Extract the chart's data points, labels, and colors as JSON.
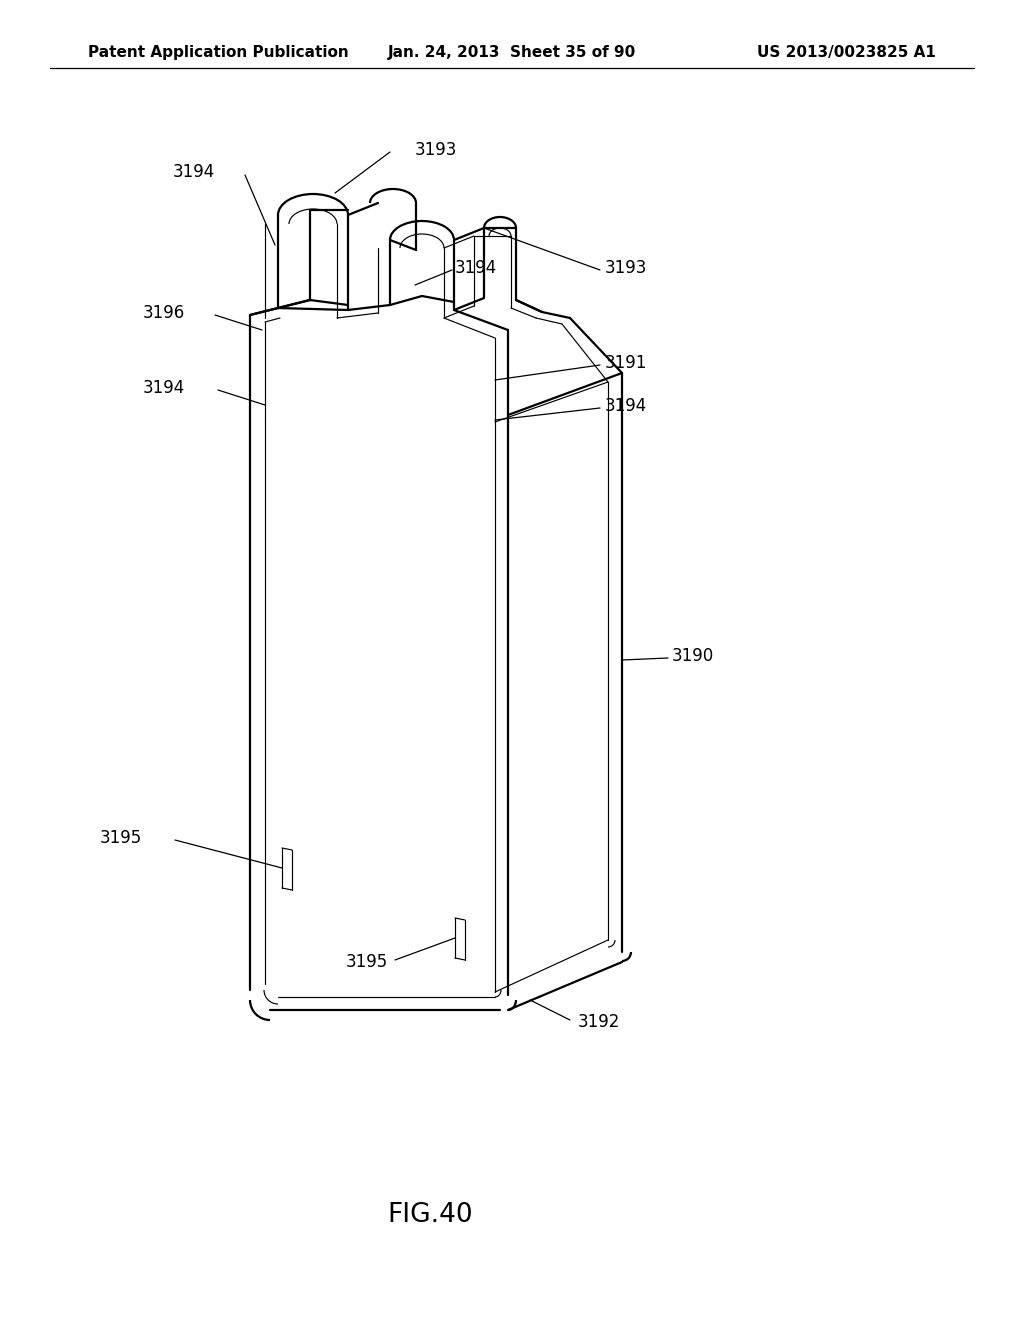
{
  "header_left": "Patent Application Publication",
  "header_center": "Jan. 24, 2013  Sheet 35 of 90",
  "header_right": "US 2013/0023825 A1",
  "figure_label": "FIG.40",
  "background_color": "#ffffff",
  "line_color": "#000000"
}
